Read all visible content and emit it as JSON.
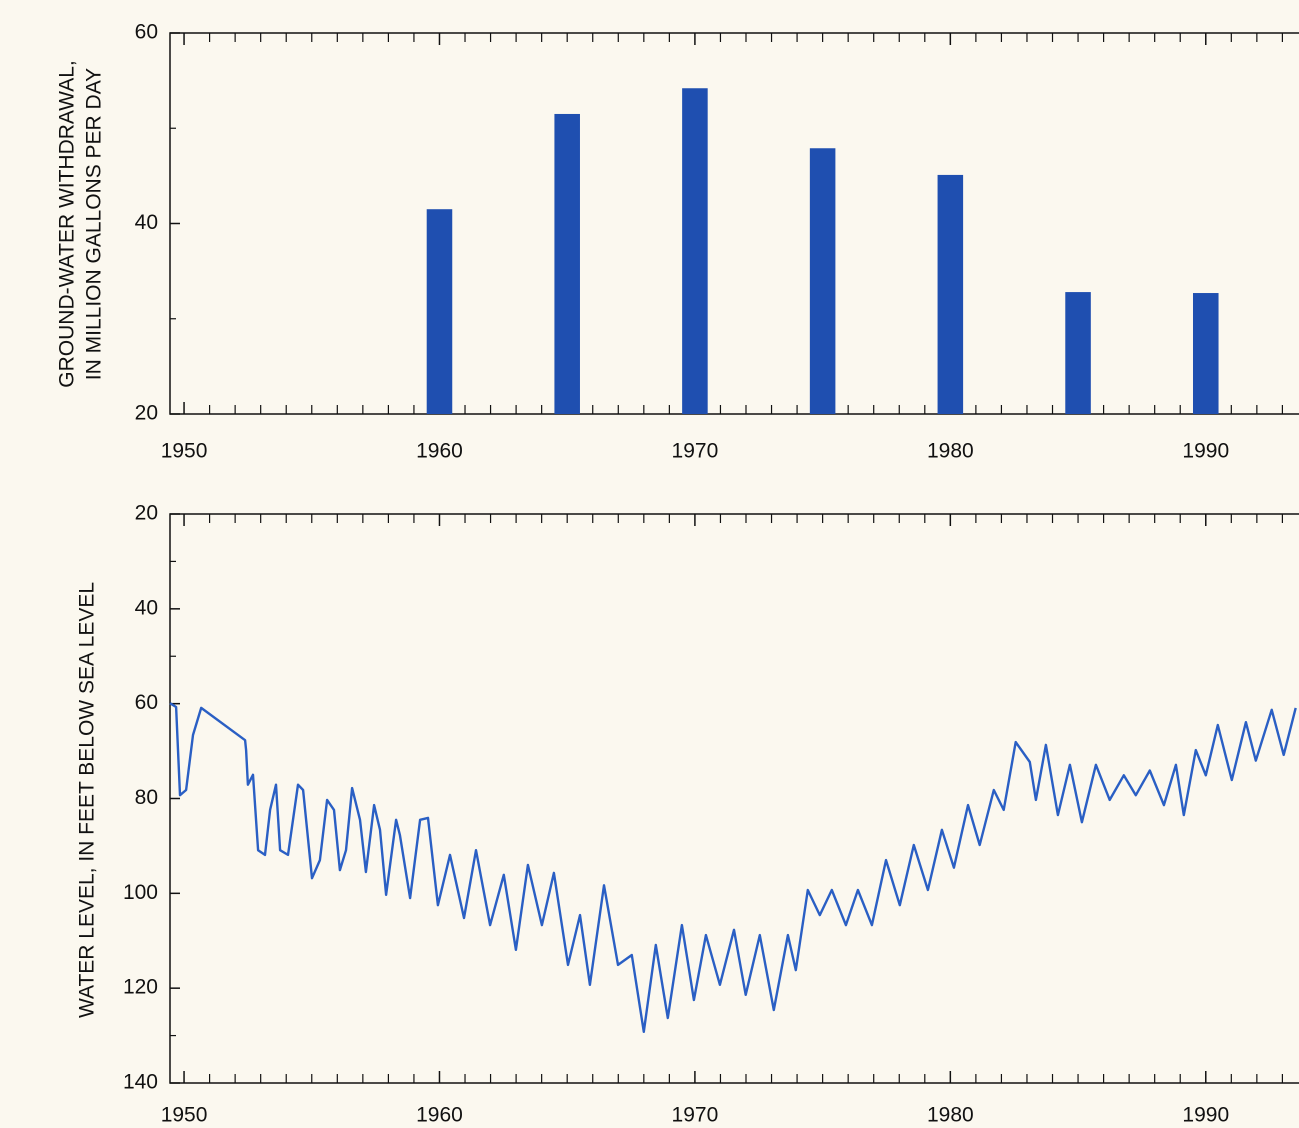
{
  "chart_data": [
    {
      "type": "bar",
      "ylabel": [
        "GROUND-WATER WITHDRAWAL,",
        "IN MILLION GALLONS PER DAY"
      ],
      "x": [
        1960,
        1965,
        1970,
        1975,
        1980,
        1985,
        1990
      ],
      "values": [
        41.5,
        51.5,
        54.2,
        47.9,
        45.1,
        32.8,
        32.7
      ],
      "color": "#1f4fb0",
      "xlim": [
        1949.45,
        1993.65
      ],
      "xticks": [
        1950,
        1960,
        1970,
        1980,
        1990
      ],
      "xminorticks": [
        1951,
        1952,
        1953,
        1954,
        1955,
        1956,
        1957,
        1958,
        1959,
        1961,
        1962,
        1963,
        1964,
        1965,
        1966,
        1967,
        1968,
        1969,
        1971,
        1972,
        1973,
        1974,
        1975,
        1976,
        1977,
        1978,
        1979,
        1981,
        1982,
        1983,
        1984,
        1985,
        1986,
        1987,
        1988,
        1989,
        1991,
        1992,
        1993
      ],
      "ylim": [
        20,
        60
      ],
      "yticks": [
        20,
        40,
        60
      ],
      "yminorticks": [
        30,
        50
      ]
    },
    {
      "type": "line",
      "ylabel": [
        "WATER LEVEL, IN FEET BELOW SEA LEVEL"
      ],
      "x": [
        1949.45,
        1949.69,
        1949.84,
        1950.08,
        1950.35,
        1950.67,
        1952.39,
        1952.43,
        1952.5,
        1952.7,
        1952.9,
        1953.17,
        1953.37,
        1953.6,
        1953.76,
        1954.07,
        1954.46,
        1954.66,
        1955.01,
        1955.32,
        1955.6,
        1955.87,
        1956.1,
        1956.34,
        1956.58,
        1956.89,
        1957.12,
        1957.44,
        1957.67,
        1957.91,
        1958.3,
        1958.45,
        1958.85,
        1959.24,
        1959.55,
        1959.94,
        1960.41,
        1960.96,
        1961.43,
        1961.98,
        1962.52,
        1962.99,
        1963.46,
        1964.01,
        1964.48,
        1965.03,
        1965.5,
        1965.89,
        1966.44,
        1966.99,
        1967.53,
        1968.0,
        1968.47,
        1968.94,
        1969.49,
        1969.96,
        1970.43,
        1970.98,
        1971.53,
        1971.99,
        1972.54,
        1973.09,
        1973.64,
        1973.95,
        1974.42,
        1974.89,
        1975.36,
        1975.91,
        1976.38,
        1976.93,
        1977.48,
        1978.02,
        1978.57,
        1979.12,
        1979.67,
        1980.14,
        1980.69,
        1981.15,
        1981.7,
        1982.09,
        1982.56,
        1983.11,
        1983.35,
        1983.74,
        1984.21,
        1984.68,
        1985.15,
        1985.7,
        1986.24,
        1986.79,
        1987.26,
        1987.81,
        1988.36,
        1988.83,
        1989.14,
        1989.61,
        1990.0,
        1990.47,
        1991.02,
        1991.57,
        1991.96,
        1992.58,
        1993.05,
        1993.52
      ],
      "values": [
        59.9,
        60.7,
        79.3,
        78.2,
        66.6,
        60.9,
        67.7,
        69.8,
        77.1,
        75.0,
        90.9,
        91.9,
        82.4,
        77.1,
        90.9,
        91.9,
        77.1,
        78.2,
        96.8,
        93.0,
        80.3,
        82.4,
        95.1,
        90.9,
        77.8,
        84.5,
        95.5,
        81.4,
        86.6,
        100.3,
        84.5,
        87.7,
        101.0,
        84.5,
        84.1,
        102.5,
        91.9,
        105.2,
        90.9,
        106.7,
        96.1,
        111.9,
        94.0,
        106.7,
        95.7,
        115.1,
        104.6,
        119.3,
        98.3,
        115.1,
        113.0,
        129.2,
        110.9,
        126.3,
        106.7,
        122.5,
        108.8,
        119.3,
        107.7,
        121.4,
        108.8,
        124.6,
        108.8,
        116.2,
        99.3,
        104.6,
        99.3,
        106.7,
        99.3,
        106.7,
        93.0,
        102.5,
        89.8,
        99.3,
        86.6,
        94.6,
        81.4,
        89.8,
        78.2,
        82.4,
        68.1,
        72.3,
        80.3,
        68.7,
        83.5,
        72.9,
        85.0,
        72.9,
        80.3,
        75.1,
        79.3,
        74.1,
        81.4,
        72.9,
        83.5,
        69.8,
        75.1,
        64.5,
        76.1,
        63.9,
        72.0,
        61.3,
        70.8,
        60.9
      ],
      "color": "#2a5fc4",
      "xlim": [
        1949.45,
        1993.65
      ],
      "xticks": [
        1950,
        1960,
        1970,
        1980,
        1990
      ],
      "xminorticks": [
        1951,
        1952,
        1953,
        1954,
        1955,
        1956,
        1957,
        1958,
        1959,
        1961,
        1962,
        1963,
        1964,
        1965,
        1966,
        1967,
        1968,
        1969,
        1971,
        1972,
        1973,
        1974,
        1975,
        1976,
        1977,
        1978,
        1979,
        1981,
        1982,
        1983,
        1984,
        1985,
        1986,
        1987,
        1988,
        1989,
        1991,
        1992,
        1993
      ],
      "ylim": [
        140,
        20
      ],
      "yticks": [
        20,
        40,
        60,
        80,
        100,
        120,
        140
      ],
      "yminorticks": [
        30,
        50,
        130
      ]
    }
  ]
}
